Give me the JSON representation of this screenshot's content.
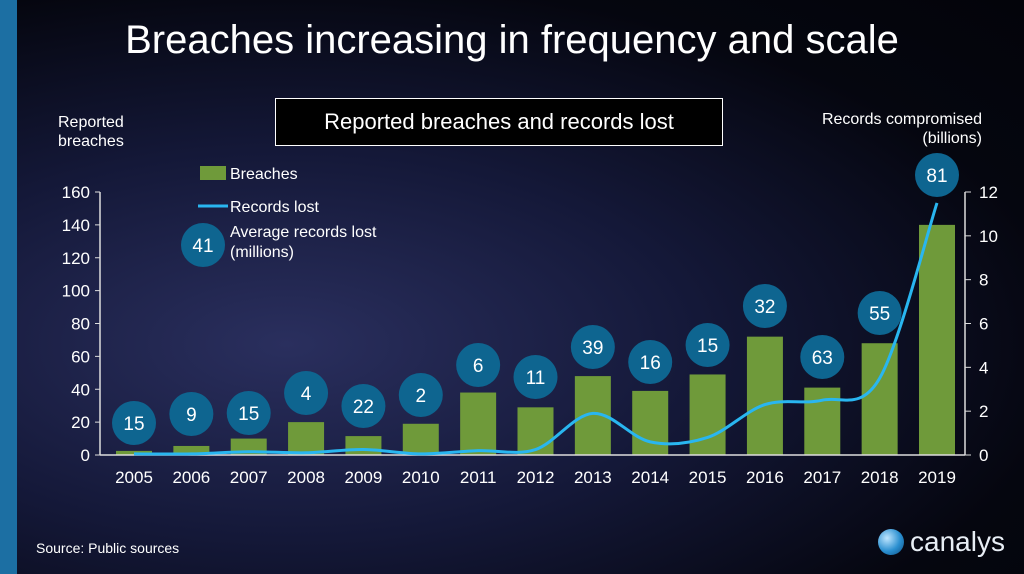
{
  "title": "Breaches increasing in frequency and scale",
  "source": "Source: Public sources",
  "logo_text": "canalys",
  "colors": {
    "bars": "#6f9a3a",
    "line": "#29b6f0",
    "bubble": "#0e6590",
    "stripe": "#1c6fa3"
  },
  "chart_data": {
    "type": "bar+line",
    "title": "Reported breaches and records lost",
    "ylabel_left": [
      "Reported",
      "breaches"
    ],
    "ylabel_right": [
      "Records compromised",
      "(billions)"
    ],
    "ylim_left": [
      0,
      160
    ],
    "ylim_right": [
      0,
      12
    ],
    "yticks_left": [
      "0",
      "20",
      "40",
      "60",
      "80",
      "100",
      "120",
      "140",
      "160"
    ],
    "yticks_right": [
      "0",
      "2",
      "4",
      "6",
      "8",
      "10",
      "12"
    ],
    "grid": false,
    "legend_placement": "top-left",
    "legend": {
      "bars": "Breaches",
      "line": "Records lost",
      "bubble_label": [
        "Average records lost",
        "(millions)"
      ],
      "bubble_sample": "41"
    },
    "categories": [
      "2005",
      "2006",
      "2007",
      "2008",
      "2009",
      "2010",
      "2011",
      "2012",
      "2013",
      "2014",
      "2015",
      "2016",
      "2017",
      "2018",
      "2019"
    ],
    "series": [
      {
        "name": "Breaches",
        "type": "bar",
        "axis": "left",
        "values": [
          2.5,
          5.5,
          10,
          20,
          11.5,
          19,
          38,
          29,
          48,
          39,
          49,
          72,
          41,
          68,
          140
        ]
      },
      {
        "name": "Records lost",
        "type": "line",
        "axis": "right",
        "values": [
          0.05,
          0.05,
          0.15,
          0.1,
          0.25,
          0.05,
          0.2,
          0.25,
          1.9,
          0.6,
          0.8,
          2.3,
          2.5,
          3.5,
          11.5
        ]
      },
      {
        "name": "Average records lost (millions)",
        "type": "label",
        "values": [
          "15",
          "9",
          "15",
          "4",
          "22",
          "2",
          "6",
          "11",
          "39",
          "16",
          "15",
          "32",
          "63",
          "55",
          "81"
        ]
      }
    ]
  }
}
